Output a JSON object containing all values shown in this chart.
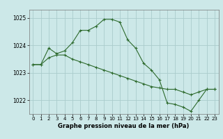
{
  "series1": {
    "x": [
      0,
      1,
      2,
      3,
      4,
      5,
      6,
      7,
      8,
      9,
      10,
      11,
      12,
      13,
      14,
      15,
      16,
      17,
      18,
      19,
      20,
      21,
      22,
      23
    ],
    "y": [
      1023.3,
      1023.3,
      1023.9,
      1023.7,
      1023.8,
      1024.1,
      1024.55,
      1024.55,
      1024.7,
      1024.95,
      1024.95,
      1024.85,
      1024.2,
      1023.9,
      1023.35,
      1023.1,
      1022.75,
      1021.9,
      1021.85,
      1021.75,
      1021.6,
      1022.0,
      1022.4,
      1022.4
    ]
  },
  "series2": {
    "x": [
      0,
      1,
      2,
      3,
      4,
      5,
      6,
      7,
      8,
      9,
      10,
      11,
      12,
      13,
      14,
      15,
      16,
      17,
      18,
      19,
      20,
      21,
      22,
      23
    ],
    "y": [
      1023.3,
      1023.3,
      1023.55,
      1023.65,
      1023.65,
      1023.5,
      1023.4,
      1023.3,
      1023.2,
      1023.1,
      1023.0,
      1022.9,
      1022.8,
      1022.7,
      1022.6,
      1022.5,
      1022.45,
      1022.4,
      1022.4,
      1022.3,
      1022.2,
      1022.3,
      1022.4,
      1022.4
    ]
  },
  "line_color": "#2d6a2d",
  "bg_color": "#cce8e8",
  "grid_color": "#aacccc",
  "xlabel": "Graphe pression niveau de la mer (hPa)",
  "ylim": [
    1021.5,
    1025.3
  ],
  "yticks": [
    1022,
    1023,
    1024,
    1025
  ],
  "xticks": [
    0,
    1,
    2,
    3,
    4,
    5,
    6,
    7,
    8,
    9,
    10,
    11,
    12,
    13,
    14,
    15,
    16,
    17,
    18,
    19,
    20,
    21,
    22,
    23
  ]
}
